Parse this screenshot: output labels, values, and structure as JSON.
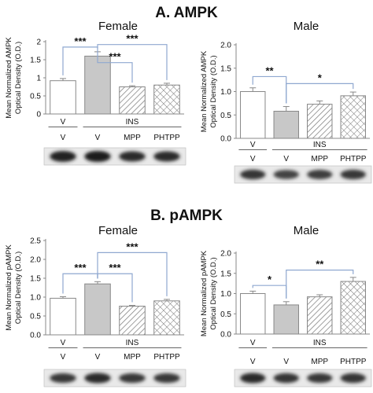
{
  "sections": [
    {
      "title": "A.  AMPK"
    },
    {
      "title": "B.  pAMPK"
    }
  ],
  "chart_data": [
    {
      "type": "bar",
      "panel": "A-female",
      "title": "Female",
      "ylabel": [
        "Mean Normalized AMPK",
        "Optical Density (O.D.)"
      ],
      "ylim": [
        0,
        2.0
      ],
      "yticks": [
        "0",
        "0.5",
        "1",
        "1.5",
        "2"
      ],
      "categories": [
        "V",
        "V",
        "MPP",
        "PHTPP"
      ],
      "values": [
        0.92,
        1.6,
        0.75,
        0.8
      ],
      "errors": [
        0.06,
        0.12,
        0.03,
        0.05
      ],
      "fills": [
        "white",
        "gray",
        "hatch",
        "crosshatch"
      ],
      "group_row1": [
        "V",
        "INS"
      ],
      "significance": [
        {
          "from": 0,
          "to": 1,
          "label": "***",
          "level": 1.85
        },
        {
          "from": 1,
          "to": 2,
          "label": "***",
          "level": 1.42
        },
        {
          "from": 1,
          "to": 3,
          "label": "***",
          "level": 1.92
        }
      ]
    },
    {
      "type": "bar",
      "panel": "A-male",
      "title": "Male",
      "ylabel": [
        "Mean Normalized AMPK",
        "Optical Density (O.D.)"
      ],
      "ylim": [
        0,
        2.0
      ],
      "yticks": [
        "0.0",
        "0.5",
        "1.0",
        "1.5",
        "2.0"
      ],
      "categories": [
        "V",
        "V",
        "MPP",
        "PHTPP"
      ],
      "values": [
        1.0,
        0.58,
        0.73,
        0.91
      ],
      "errors": [
        0.08,
        0.1,
        0.07,
        0.08
      ],
      "fills": [
        "white",
        "gray",
        "hatch",
        "crosshatch"
      ],
      "group_row1": [
        "V",
        "INS"
      ],
      "significance": [
        {
          "from": 0,
          "to": 1,
          "label": "**",
          "level": 1.32
        },
        {
          "from": 1,
          "to": 3,
          "label": "*",
          "level": 1.17
        }
      ]
    },
    {
      "type": "bar",
      "panel": "B-female",
      "title": "Female",
      "ylabel": [
        "Mean Normalized pAMPK",
        "Optical Density (O.D.)"
      ],
      "ylim": [
        0,
        2.5
      ],
      "yticks": [
        "0.0",
        "0.5",
        "1.0",
        "1.5",
        "2.0",
        "2.5"
      ],
      "categories": [
        "V",
        "V",
        "MPP",
        "PHTPP"
      ],
      "values": [
        0.97,
        1.35,
        0.76,
        0.9
      ],
      "errors": [
        0.04,
        0.06,
        0.02,
        0.04
      ],
      "fills": [
        "white",
        "gray",
        "hatch",
        "crosshatch"
      ],
      "group_row1": [
        "V",
        "INS"
      ],
      "significance": [
        {
          "from": 0,
          "to": 1,
          "label": "***",
          "level": 1.62
        },
        {
          "from": 1,
          "to": 2,
          "label": "***",
          "level": 1.62
        },
        {
          "from": 1,
          "to": 3,
          "label": "***",
          "level": 2.18
        }
      ]
    },
    {
      "type": "bar",
      "panel": "B-male",
      "title": "Male",
      "ylabel": [
        "Mean Normalized pAMPK",
        "Optical Density (O.D.)"
      ],
      "ylim": [
        0,
        2.0
      ],
      "yticks": [
        "0.0",
        "0.5",
        "1.0",
        "1.5",
        "2.0"
      ],
      "categories": [
        "V",
        "V",
        "MPP",
        "PHTPP"
      ],
      "values": [
        1.0,
        0.72,
        0.92,
        1.3
      ],
      "errors": [
        0.06,
        0.08,
        0.05,
        0.1
      ],
      "fills": [
        "white",
        "gray",
        "hatch",
        "crosshatch"
      ],
      "group_row1": [
        "V",
        "INS"
      ],
      "significance": [
        {
          "from": 0,
          "to": 1,
          "label": "*",
          "level": 1.2
        },
        {
          "from": 1,
          "to": 3,
          "label": "**",
          "level": 1.58
        }
      ]
    }
  ],
  "blots": [
    {
      "band_intensity": [
        0.95,
        1.0,
        0.85,
        0.85
      ]
    },
    {
      "band_intensity": [
        0.75,
        0.6,
        0.65,
        0.7
      ]
    },
    {
      "band_intensity": [
        0.7,
        0.85,
        0.7,
        0.7
      ]
    },
    {
      "band_intensity": [
        0.85,
        0.75,
        0.7,
        0.75
      ]
    }
  ],
  "colors": {
    "bar_edge": "#888888",
    "gray_fill": "#c8c8c8",
    "bracket": "#8fa8d0",
    "text": "#111111"
  }
}
